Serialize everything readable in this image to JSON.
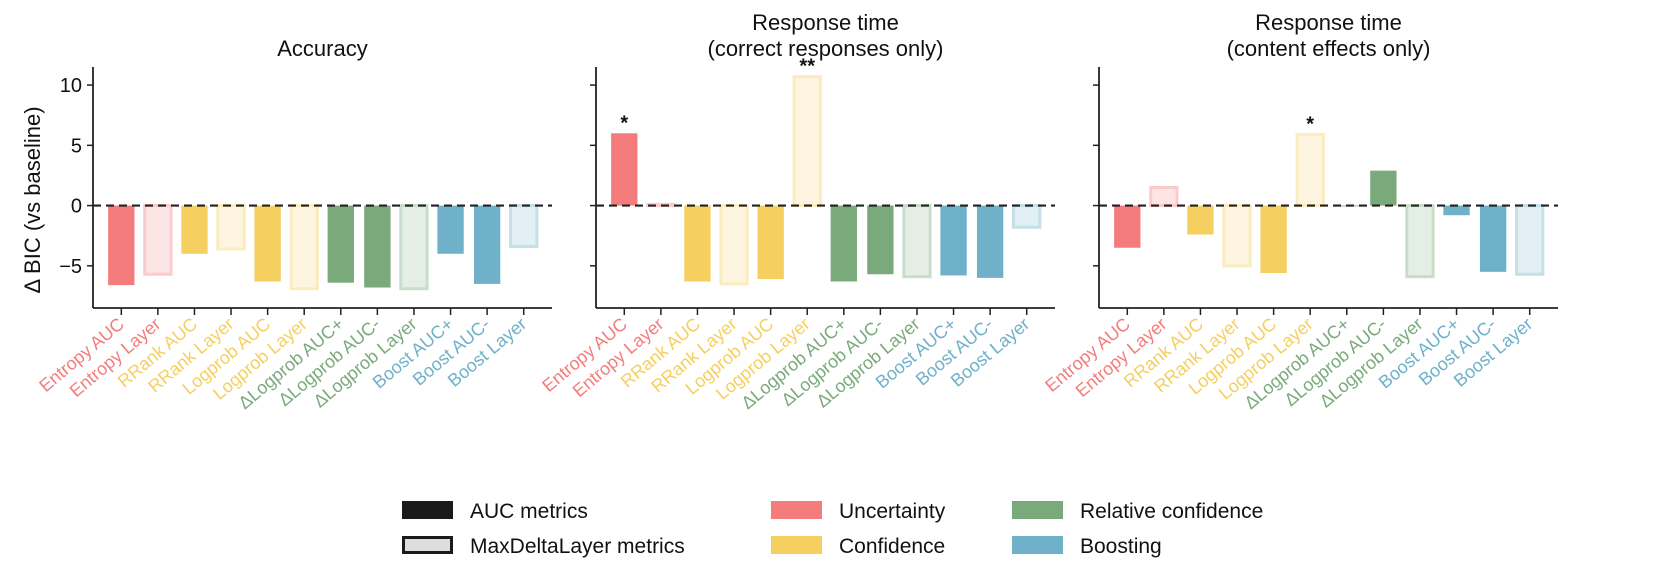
{
  "colors": {
    "Uncertainty": "#f47c7c",
    "Confidence": "#f5cf60",
    "Relative confidence": "#7aaa7c",
    "Boosting": "#6fb1c9",
    "axis": "#222222",
    "zero_line": "#222222"
  },
  "y_axis_label": "Δ BIC (vs baseline)",
  "legend": {
    "style_entries": [
      {
        "label": "AUC metrics",
        "style": "filled"
      },
      {
        "label": "MaxDeltaLayer metrics",
        "style": "outline"
      }
    ],
    "group_entries": [
      {
        "label": "Uncertainty",
        "group": "Uncertainty"
      },
      {
        "label": "Confidence",
        "group": "Confidence"
      },
      {
        "label": "Relative confidence",
        "group": "Relative confidence"
      },
      {
        "label": "Boosting",
        "group": "Boosting"
      }
    ]
  },
  "chart_data": [
    {
      "type": "bar",
      "title": [
        "Accuracy"
      ],
      "ylabel": "Δ BIC (vs baseline)",
      "ylim": [
        -8.5,
        11.5
      ],
      "yticks": [
        -5,
        0,
        5,
        10
      ],
      "categories": [
        "Entropy AUC",
        "Entropy Layer",
        "RRank AUC",
        "RRank Layer",
        "Logprob AUC",
        "Logprob Layer",
        "ΔLogprob AUC+",
        "ΔLogprob AUC-",
        "ΔLogprob Layer",
        "Boost AUC+",
        "Boost AUC-",
        "Boost Layer"
      ],
      "groups": [
        "Uncertainty",
        "Uncertainty",
        "Confidence",
        "Confidence",
        "Confidence",
        "Confidence",
        "Relative confidence",
        "Relative confidence",
        "Relative confidence",
        "Boosting",
        "Boosting",
        "Boosting"
      ],
      "styles": [
        "filled",
        "outline",
        "filled",
        "outline",
        "filled",
        "outline",
        "filled",
        "filled",
        "outline",
        "filled",
        "filled",
        "outline"
      ],
      "values": [
        -6.6,
        -5.7,
        -4.0,
        -3.6,
        -6.3,
        -6.9,
        -6.4,
        -6.8,
        -6.9,
        -4.0,
        -6.5,
        -3.4
      ],
      "annotations": [
        "",
        "",
        "",
        "",
        "",
        "",
        "",
        "",
        "",
        "",
        "",
        ""
      ]
    },
    {
      "type": "bar",
      "title": [
        "Response time",
        "(correct responses only)"
      ],
      "ylim": [
        -8.5,
        11.5
      ],
      "yticks": [
        -5,
        0,
        5,
        10
      ],
      "categories": [
        "Entropy AUC",
        "Entropy Layer",
        "RRank AUC",
        "RRank Layer",
        "Logprob AUC",
        "Logprob Layer",
        "ΔLogprob AUC+",
        "ΔLogprob AUC-",
        "ΔLogprob Layer",
        "Boost AUC+",
        "Boost AUC-",
        "Boost Layer"
      ],
      "groups": [
        "Uncertainty",
        "Uncertainty",
        "Confidence",
        "Confidence",
        "Confidence",
        "Confidence",
        "Relative confidence",
        "Relative confidence",
        "Relative confidence",
        "Boosting",
        "Boosting",
        "Boosting"
      ],
      "styles": [
        "filled",
        "outline",
        "filled",
        "outline",
        "filled",
        "outline",
        "filled",
        "filled",
        "outline",
        "filled",
        "filled",
        "outline"
      ],
      "values": [
        6.0,
        0.1,
        -6.3,
        -6.5,
        -6.1,
        10.7,
        -6.3,
        -5.7,
        -5.9,
        -5.8,
        -6.0,
        -1.8
      ],
      "annotations": [
        "*",
        "",
        "",
        "",
        "",
        "**",
        "",
        "",
        "",
        "",
        "",
        ""
      ]
    },
    {
      "type": "bar",
      "title": [
        "Response time",
        "(content effects only)"
      ],
      "ylim": [
        -8.5,
        11.5
      ],
      "yticks": [
        -5,
        0,
        5,
        10
      ],
      "categories": [
        "Entropy AUC",
        "Entropy Layer",
        "RRank AUC",
        "RRank Layer",
        "Logprob AUC",
        "Logprob Layer",
        "ΔLogprob AUC+",
        "ΔLogprob AUC-",
        "ΔLogprob Layer",
        "Boost AUC+",
        "Boost AUC-",
        "Boost Layer"
      ],
      "groups": [
        "Uncertainty",
        "Uncertainty",
        "Confidence",
        "Confidence",
        "Confidence",
        "Confidence",
        "Relative confidence",
        "Relative confidence",
        "Relative confidence",
        "Boosting",
        "Boosting",
        "Boosting"
      ],
      "styles": [
        "filled",
        "outline",
        "filled",
        "outline",
        "filled",
        "outline",
        "filled",
        "filled",
        "outline",
        "filled",
        "filled",
        "outline"
      ],
      "values": [
        -3.5,
        1.5,
        -2.4,
        -5.0,
        -5.6,
        5.9,
        0.0,
        2.9,
        -5.9,
        -0.8,
        -5.5,
        -5.7
      ],
      "annotations": [
        "",
        "",
        "",
        "",
        "",
        "*",
        "",
        "",
        "",
        "",
        "",
        ""
      ]
    }
  ]
}
